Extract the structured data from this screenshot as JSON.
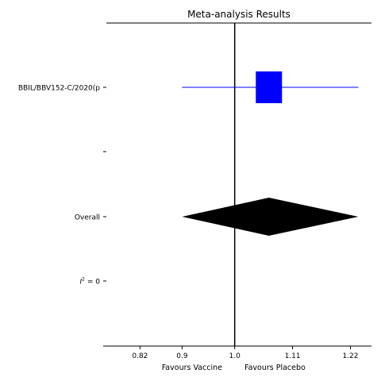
{
  "chart_data": {
    "type": "forest",
    "title": "Meta-analysis Results",
    "xlim": [
      0.75,
      1.26
    ],
    "x_ticks": [
      {
        "value": 0.82,
        "label": "0.82"
      },
      {
        "value": 0.9,
        "label": "0.9"
      },
      {
        "value": 1.0,
        "label": "1.0"
      },
      {
        "value": 1.11,
        "label": "1.11"
      },
      {
        "value": 1.22,
        "label": "1.22"
      }
    ],
    "reference_line": 1.0,
    "x_annotations": {
      "left": "Favours Vaccine",
      "right": "Favours Placebo"
    },
    "rows": [
      {
        "label": "BBIL/BBV152-C/2020(p",
        "kind": "study",
        "estimate": 1.065,
        "ci_low": 0.9,
        "ci_high": 1.235,
        "color": "#0000ff"
      },
      {
        "label": "",
        "kind": "spacer"
      },
      {
        "label": "Overall",
        "kind": "pooled",
        "estimate": 1.065,
        "ci_low": 0.9,
        "ci_high": 1.235,
        "color": "#000000"
      },
      {
        "label_prefix": "I",
        "label_sup": "2",
        "label_suffix": " = 0",
        "kind": "stat"
      }
    ]
  }
}
